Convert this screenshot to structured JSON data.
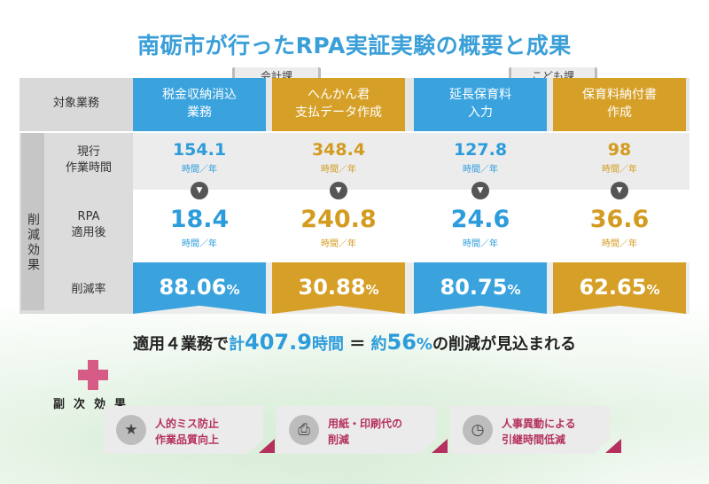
{
  "title": "南砺市が行ったRPA実証実験の概要と成果",
  "departments": [
    "会計課",
    "こども課"
  ],
  "row_labels": {
    "task": "対象業務",
    "current": "現行\n作業時間",
    "rpa": "RPA\n適用後",
    "rate": "削減率",
    "effect_group": "削減効果"
  },
  "unit": "時間／年",
  "percent_sign": "%",
  "arrow_icon": "▼",
  "tasks": [
    {
      "name": "税金収納消込\n業務",
      "color": "blue",
      "current": "154.1",
      "rpa": "18.4",
      "rate": "88.06"
    },
    {
      "name": "へんかん君\n支払データ作成",
      "color": "gold",
      "current": "348.4",
      "rpa": "240.8",
      "rate": "30.88"
    },
    {
      "name": "延長保育料\n入力",
      "color": "blue",
      "current": "127.8",
      "rpa": "24.6",
      "rate": "80.75"
    },
    {
      "name": "保育料納付書\n作成",
      "color": "gold",
      "current": "98",
      "rpa": "36.6",
      "rate": "62.65"
    }
  ],
  "summary": {
    "prefix": "適用４業務で",
    "kei": "計",
    "hours": "407.9",
    "hours_unit": "時間",
    "equals": " ＝ ",
    "yaku": "約",
    "pct": "56",
    "pct_sign": "%",
    "suffix": "の削減が見込まれる"
  },
  "side_effects": {
    "title": "副次効果",
    "items": [
      {
        "icon": "star-icon",
        "glyph": "★",
        "text": "人的ミス防止\n作業品質向上"
      },
      {
        "icon": "printer-icon",
        "glyph": "⎙",
        "text": "用紙・印刷代の\n削減"
      },
      {
        "icon": "stopwatch-icon",
        "glyph": "◷",
        "text": "人事異動による\n引継時間低減"
      }
    ]
  },
  "colors": {
    "blue": "#3aa3de",
    "gold": "#d6a028",
    "accent_pink": "#b5305f",
    "title_blue": "#3a9fd8"
  }
}
